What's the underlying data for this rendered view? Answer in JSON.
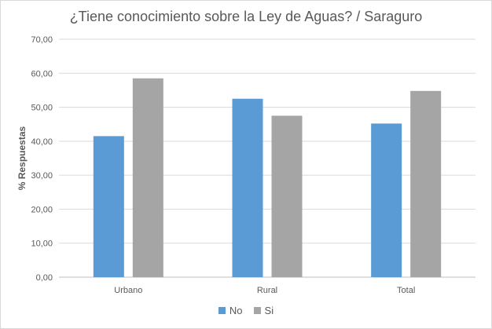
{
  "chart_data": {
    "type": "bar",
    "title": "¿Tiene conocimiento sobre la Ley de Aguas? / Saraguro",
    "xlabel": "",
    "ylabel": "% Respuestas",
    "ylim": [
      0,
      70
    ],
    "yticks": [
      "0,00",
      "10,00",
      "20,00",
      "30,00",
      "40,00",
      "50,00",
      "60,00",
      "70,00"
    ],
    "categories": [
      "Urbano",
      "Rural",
      "Total"
    ],
    "series": [
      {
        "name": "No",
        "color": "#5b9bd5",
        "values": [
          41.5,
          52.5,
          45.2
        ]
      },
      {
        "name": "Si",
        "color": "#a5a5a5",
        "values": [
          58.5,
          47.5,
          54.8
        ]
      }
    ],
    "grid": true,
    "legend": "bottom"
  }
}
